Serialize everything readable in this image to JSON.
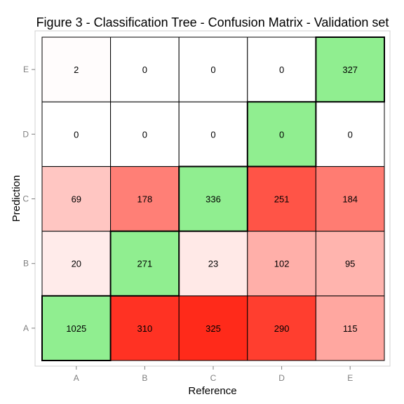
{
  "chart_data": {
    "type": "heatmap",
    "title": "Figure 3 - Classification Tree - Confusion Matrix - Validation set",
    "xlabel": "Reference",
    "ylabel": "Prediction",
    "x_categories": [
      "A",
      "B",
      "C",
      "D",
      "E"
    ],
    "y_categories": [
      "A",
      "B",
      "C",
      "D",
      "E"
    ],
    "values": {
      "A": {
        "A": 1025,
        "B": 310,
        "C": 325,
        "D": 290,
        "E": 115
      },
      "B": {
        "A": 20,
        "B": 271,
        "C": 23,
        "D": 102,
        "E": 95
      },
      "C": {
        "A": 69,
        "B": 178,
        "C": 336,
        "D": 251,
        "E": 184
      },
      "D": {
        "A": 0,
        "B": 0,
        "C": 0,
        "D": 0,
        "E": 0
      },
      "E": {
        "A": 2,
        "B": 0,
        "C": 0,
        "D": 0,
        "E": 327
      }
    },
    "diagonal_color": "#90ee90",
    "low_color": "#ffffff",
    "high_color": "#ff2a1a",
    "legend": "none",
    "grid": false
  }
}
